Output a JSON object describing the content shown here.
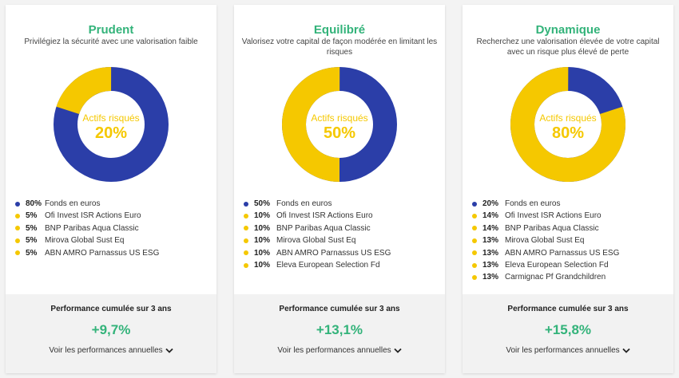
{
  "colors": {
    "title_green": "#33b37a",
    "navy": "#2b3ea8",
    "yellow": "#f5c800"
  },
  "cards": [
    {
      "title": "Prudent",
      "description": "Privilégiez la sécurité avec une valorisation faible",
      "donut": {
        "label": "Actifs risqués",
        "value_text": "20%",
        "risky_fraction": 0.2
      },
      "allocation": [
        {
          "percent": "80%",
          "name": "Fonds en euros",
          "color": "navy"
        },
        {
          "percent": "5%",
          "name": "Ofi Invest ISR Actions Euro",
          "color": "yellow"
        },
        {
          "percent": "5%",
          "name": "BNP Paribas Aqua Classic",
          "color": "yellow"
        },
        {
          "percent": "5%",
          "name": "Mirova Global Sust Eq",
          "color": "yellow"
        },
        {
          "percent": "5%",
          "name": "ABN AMRO Parnassus US ESG",
          "color": "yellow"
        }
      ],
      "performance": {
        "label": "Performance cumulée sur 3 ans",
        "value": "+9,7%",
        "link": "Voir les performances annuelles"
      }
    },
    {
      "title": "Equilibré",
      "description": "Valorisez votre capital de façon modérée en limitant les risques",
      "donut": {
        "label": "Actifs risqués",
        "value_text": "50%",
        "risky_fraction": 0.5
      },
      "allocation": [
        {
          "percent": "50%",
          "name": "Fonds en euros",
          "color": "navy"
        },
        {
          "percent": "10%",
          "name": "Ofi Invest ISR Actions Euro",
          "color": "yellow"
        },
        {
          "percent": "10%",
          "name": "BNP Paribas Aqua Classic",
          "color": "yellow"
        },
        {
          "percent": "10%",
          "name": "Mirova Global Sust Eq",
          "color": "yellow"
        },
        {
          "percent": "10%",
          "name": "ABN AMRO Parnassus US ESG",
          "color": "yellow"
        },
        {
          "percent": "10%",
          "name": "Eleva European Selection Fd",
          "color": "yellow"
        }
      ],
      "performance": {
        "label": "Performance cumulée sur 3 ans",
        "value": "+13,1%",
        "link": "Voir les performances annuelles"
      }
    },
    {
      "title": "Dynamique",
      "description": "Recherchez une valorisation élevée de votre capital avec un risque plus élevé de perte",
      "donut": {
        "label": "Actifs risqués",
        "value_text": "80%",
        "risky_fraction": 0.8
      },
      "allocation": [
        {
          "percent": "20%",
          "name": "Fonds en euros",
          "color": "navy"
        },
        {
          "percent": "14%",
          "name": "Ofi Invest ISR Actions Euro",
          "color": "yellow"
        },
        {
          "percent": "14%",
          "name": "BNP Paribas Aqua Classic",
          "color": "yellow"
        },
        {
          "percent": "13%",
          "name": "Mirova Global Sust Eq",
          "color": "yellow"
        },
        {
          "percent": "13%",
          "name": "ABN AMRO Parnassus US ESG",
          "color": "yellow"
        },
        {
          "percent": "13%",
          "name": "Eleva European Selection Fd",
          "color": "yellow"
        },
        {
          "percent": "13%",
          "name": "Carmignac Pf Grandchildren",
          "color": "yellow"
        }
      ],
      "performance": {
        "label": "Performance cumulée sur 3 ans",
        "value": "+15,8%",
        "link": "Voir les performances annuelles"
      }
    }
  ]
}
